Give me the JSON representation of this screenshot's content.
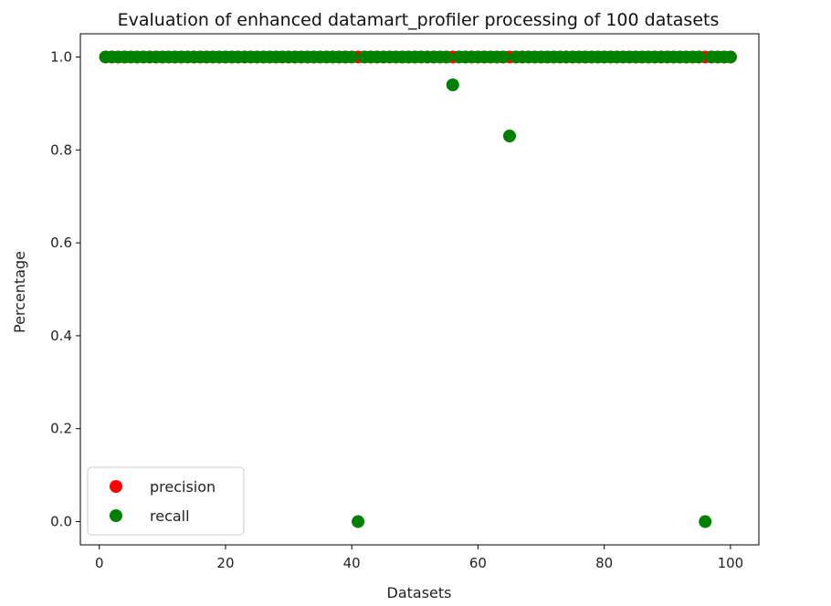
{
  "chart_data": {
    "type": "scatter",
    "title": "Evaluation of enhanced datamart_profiler processing of 100 datasets",
    "xlabel": "Datasets",
    "ylabel": "Percentage",
    "xlim": [
      -3,
      104.5
    ],
    "ylim": [
      -0.05,
      1.05
    ],
    "xticks": [
      0,
      20,
      40,
      60,
      80,
      100
    ],
    "xtick_labels": [
      "0",
      "20",
      "40",
      "60",
      "80",
      "100"
    ],
    "yticks": [
      0.0,
      0.2,
      0.4,
      0.6,
      0.8,
      1.0
    ],
    "ytick_labels": [
      "0.0",
      "0.2",
      "0.4",
      "0.6",
      "0.8",
      "1.0"
    ],
    "grid": false,
    "legend_position": "lower-left",
    "x": [
      1,
      2,
      3,
      4,
      5,
      6,
      7,
      8,
      9,
      10,
      11,
      12,
      13,
      14,
      15,
      16,
      17,
      18,
      19,
      20,
      21,
      22,
      23,
      24,
      25,
      26,
      27,
      28,
      29,
      30,
      31,
      32,
      33,
      34,
      35,
      36,
      37,
      38,
      39,
      40,
      41,
      42,
      43,
      44,
      45,
      46,
      47,
      48,
      49,
      50,
      51,
      52,
      53,
      54,
      55,
      56,
      57,
      58,
      59,
      60,
      61,
      62,
      63,
      64,
      65,
      66,
      67,
      68,
      69,
      70,
      71,
      72,
      73,
      74,
      75,
      76,
      77,
      78,
      79,
      80,
      81,
      82,
      83,
      84,
      85,
      86,
      87,
      88,
      89,
      90,
      91,
      92,
      93,
      94,
      95,
      96,
      97,
      98,
      99,
      100
    ],
    "series": [
      {
        "name": "precision",
        "color": "#ff0000",
        "values": [
          1,
          1,
          1,
          1,
          1,
          1,
          1,
          1,
          1,
          1,
          1,
          1,
          1,
          1,
          1,
          1,
          1,
          1,
          1,
          1,
          1,
          1,
          1,
          1,
          1,
          1,
          1,
          1,
          1,
          1,
          1,
          1,
          1,
          1,
          1,
          1,
          1,
          1,
          1,
          1,
          1,
          1,
          1,
          1,
          1,
          1,
          1,
          1,
          1,
          1,
          1,
          1,
          1,
          1,
          1,
          1,
          1,
          1,
          1,
          1,
          1,
          1,
          1,
          1,
          1,
          1,
          1,
          1,
          1,
          1,
          1,
          1,
          1,
          1,
          1,
          1,
          1,
          1,
          1,
          1,
          1,
          1,
          1,
          1,
          1,
          1,
          1,
          1,
          1,
          1,
          1,
          1,
          1,
          1,
          1,
          1,
          1,
          1,
          1,
          1
        ]
      },
      {
        "name": "recall",
        "color": "#008000",
        "values": [
          1,
          1,
          1,
          1,
          1,
          1,
          1,
          1,
          1,
          1,
          1,
          1,
          1,
          1,
          1,
          1,
          1,
          1,
          1,
          1,
          1,
          1,
          1,
          1,
          1,
          1,
          1,
          1,
          1,
          1,
          1,
          1,
          1,
          1,
          1,
          1,
          1,
          1,
          1,
          1,
          0,
          1,
          1,
          1,
          1,
          1,
          1,
          1,
          1,
          1,
          1,
          1,
          1,
          1,
          1,
          0.94,
          1,
          1,
          1,
          1,
          1,
          1,
          1,
          1,
          0.83,
          1,
          1,
          1,
          1,
          1,
          1,
          1,
          1,
          1,
          1,
          1,
          1,
          1,
          1,
          1,
          1,
          1,
          1,
          1,
          1,
          1,
          1,
          1,
          1,
          1,
          1,
          1,
          1,
          1,
          1,
          0,
          1,
          1,
          1,
          1
        ]
      }
    ]
  }
}
